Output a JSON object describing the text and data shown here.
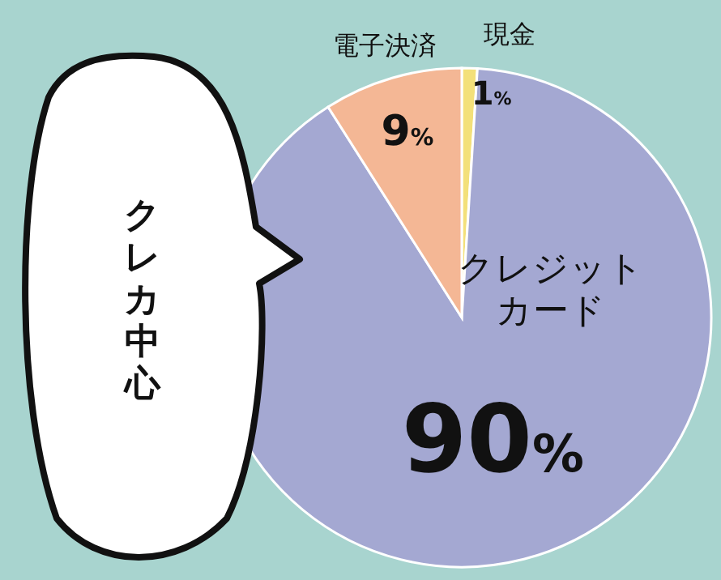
{
  "chart_data": {
    "type": "pie",
    "categories": [
      "現金",
      "クレジットカード",
      "電子決済"
    ],
    "values": [
      1,
      90,
      9
    ],
    "colors": [
      "#f3e07a",
      "#a4a8d2",
      "#f4b795"
    ],
    "value_labels": [
      "1%",
      "90%",
      "9%"
    ],
    "annotations": [
      "クレカ中心"
    ],
    "legend": false
  }
}
